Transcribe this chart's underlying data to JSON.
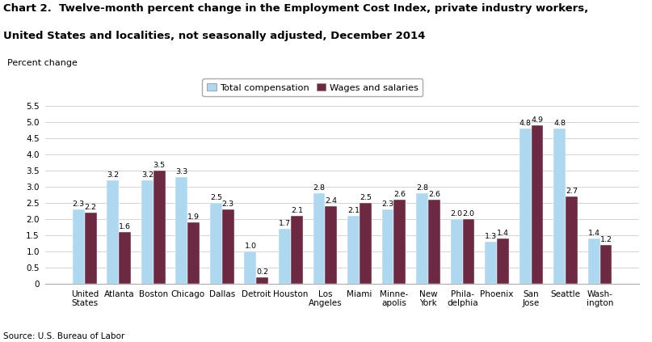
{
  "title_line1": "Chart 2.  Twelve-month percent change in the Employment Cost Index, private industry workers,",
  "title_line2": "United States and localities, not seasonally adjusted, December 2014",
  "ylabel": "Percent change",
  "source": "Source: U.S. Bureau of Labor",
  "categories": [
    "United\nStates",
    "Atlanta",
    "Boston",
    "Chicago",
    "Dallas",
    "Detroit",
    "Houston",
    "Los\nAngeles",
    "Miami",
    "Minne-\napolis",
    "New\nYork",
    "Phila-\ndelphia",
    "Phoenix",
    "San\nJose",
    "Seattle",
    "Wash-\nington"
  ],
  "total_compensation": [
    2.3,
    3.2,
    3.2,
    3.3,
    2.5,
    1.0,
    1.7,
    2.8,
    2.1,
    2.3,
    2.8,
    2.0,
    1.3,
    4.8,
    4.8,
    1.4
  ],
  "wages_salaries": [
    2.2,
    1.6,
    3.5,
    1.9,
    2.3,
    0.2,
    2.1,
    2.4,
    2.5,
    2.6,
    2.6,
    2.0,
    1.4,
    4.9,
    2.7,
    1.2
  ],
  "color_total": "#add8f0",
  "color_wages": "#6d2942",
  "ylim": [
    0,
    5.5
  ],
  "yticks": [
    0.0,
    0.5,
    1.0,
    1.5,
    2.0,
    2.5,
    3.0,
    3.5,
    4.0,
    4.5,
    5.0,
    5.5
  ],
  "bar_width": 0.35,
  "legend_labels": [
    "Total compensation",
    "Wages and salaries"
  ],
  "annotation_fontsize": 6.8,
  "title_fontsize": 9.5,
  "ylabel_fontsize": 8.0,
  "tick_fontsize": 7.5,
  "source_fontsize": 7.5
}
